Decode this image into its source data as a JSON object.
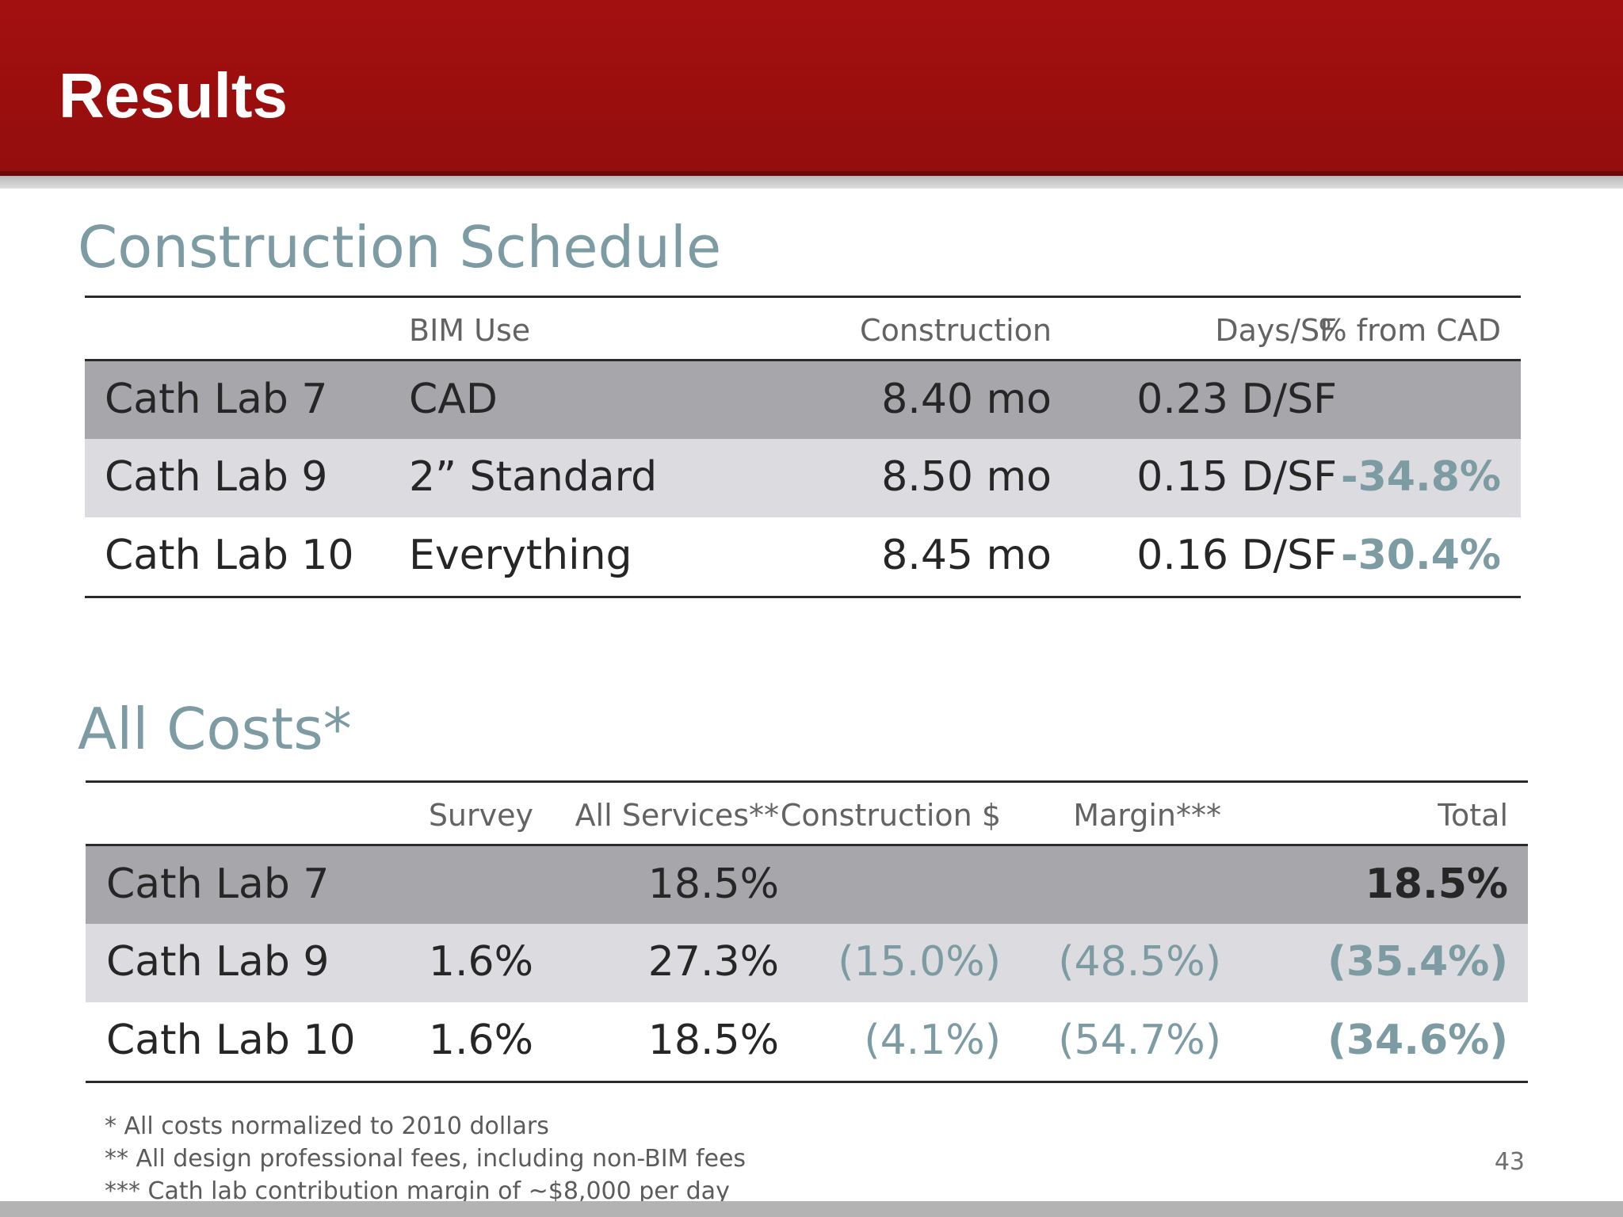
{
  "slide": {
    "title": "Results",
    "page_number": "43"
  },
  "schedule": {
    "title": "Construction Schedule",
    "headers": [
      "",
      "BIM Use",
      "Construction",
      "Days/SF",
      "% from CAD"
    ],
    "rows": [
      {
        "lab": "Cath Lab 7",
        "bim": "CAD",
        "construction": "8.40 mo",
        "days_sf": "0.23 D/SF",
        "pct": ""
      },
      {
        "lab": "Cath Lab 9",
        "bim": "2” Standard",
        "construction": "8.50 mo",
        "days_sf": "0.15 D/SF",
        "pct": "-34.8%"
      },
      {
        "lab": "Cath Lab 10",
        "bim": "Everything",
        "construction": "8.45 mo",
        "days_sf": "0.16 D/SF",
        "pct": "-30.4%"
      }
    ]
  },
  "costs": {
    "title": "All Costs*",
    "headers": [
      "",
      "Survey",
      "All Services**",
      "Construction $",
      "Margin***",
      "Total"
    ],
    "rows": [
      {
        "lab": "Cath Lab 7",
        "survey": "",
        "services": "18.5%",
        "construction": "",
        "margin": "",
        "total": "18.5%"
      },
      {
        "lab": "Cath Lab 9",
        "survey": "1.6%",
        "services": "27.3%",
        "construction": "(15.0%)",
        "margin": "(48.5%)",
        "total": "(35.4%)"
      },
      {
        "lab": "Cath Lab 10",
        "survey": "1.6%",
        "services": "18.5%",
        "construction": "(4.1%)",
        "margin": "(54.7%)",
        "total": "(34.6%)"
      }
    ]
  },
  "footnotes": [
    "* All costs normalized to 2010 dollars",
    "** All design professional fees, including non-BIM fees",
    "*** Cath lab contribution margin of ~$8,000 per day"
  ],
  "colors": {
    "header_red": "#9b0e0e",
    "accent_teal": "#7d9ba3",
    "row_dark": "#a7a6aa",
    "row_light": "#dcdbdf"
  }
}
